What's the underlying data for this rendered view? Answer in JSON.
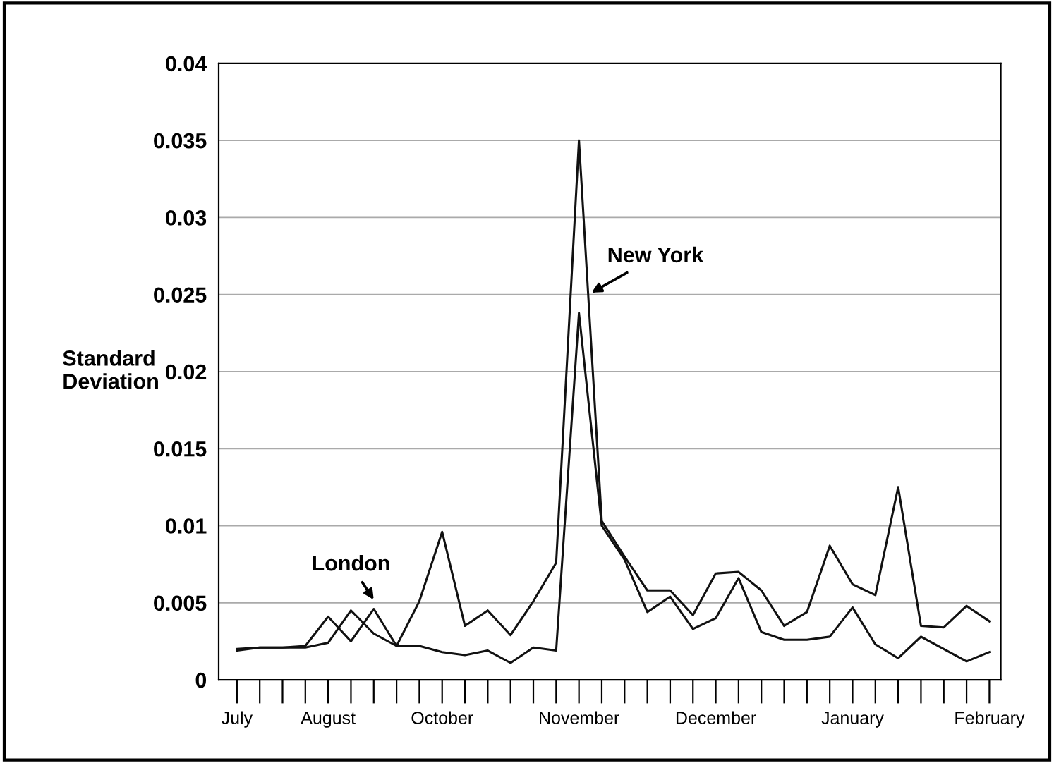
{
  "chart_data": {
    "type": "line",
    "ylabel": "Standard\nDeviation",
    "categories": [
      "July",
      null,
      null,
      null,
      "August",
      null,
      null,
      null,
      null,
      "October",
      null,
      null,
      null,
      null,
      null,
      "November",
      null,
      null,
      null,
      null,
      null,
      "December",
      null,
      null,
      null,
      null,
      null,
      "January",
      null,
      null,
      null,
      null,
      null,
      "February"
    ],
    "series": [
      {
        "name": "New York",
        "color": "#111111",
        "values": [
          0.0019,
          0.0021,
          0.0021,
          0.0021,
          0.0024,
          0.0045,
          0.003,
          0.0022,
          0.0051,
          0.0096,
          0.0035,
          0.0045,
          0.0029,
          0.0051,
          0.0076,
          0.035,
          0.0103,
          0.008,
          0.0058,
          0.0058,
          0.0042,
          0.0069,
          0.007,
          0.0058,
          0.0035,
          0.0044,
          0.0087,
          0.0062,
          0.0055,
          0.0125,
          0.0035,
          0.0034,
          0.0048,
          0.0038
        ]
      },
      {
        "name": "London",
        "color": "#111111",
        "values": [
          0.002,
          0.0021,
          0.0021,
          0.0022,
          0.0041,
          0.0025,
          0.0046,
          0.0022,
          0.0022,
          0.0018,
          0.0016,
          0.0019,
          0.0011,
          0.0021,
          0.0019,
          0.0238,
          0.01,
          0.0078,
          0.0044,
          0.0054,
          0.0033,
          0.004,
          0.0066,
          0.0031,
          0.0026,
          0.0026,
          0.0028,
          0.0047,
          0.0023,
          0.0014,
          0.0028,
          0.002,
          0.0012,
          0.0018
        ]
      }
    ],
    "ylim": [
      0,
      0.04
    ],
    "yticks": [
      0,
      0.005,
      0.01,
      0.015,
      0.02,
      0.025,
      0.03,
      0.035,
      0.04
    ],
    "grid": "y",
    "legend": false,
    "marker": "none",
    "line_style": "solid"
  }
}
